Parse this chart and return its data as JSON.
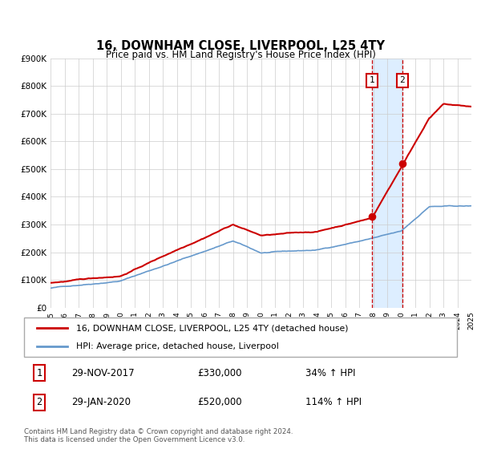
{
  "title": "16, DOWNHAM CLOSE, LIVERPOOL, L25 4TY",
  "subtitle": "Price paid vs. HM Land Registry's House Price Index (HPI)",
  "legend_line1": "16, DOWNHAM CLOSE, LIVERPOOL, L25 4TY (detached house)",
  "legend_line2": "HPI: Average price, detached house, Liverpool",
  "sale1_date": "29-NOV-2017",
  "sale1_price": 330000,
  "sale1_pct": "34%",
  "sale2_date": "29-JAN-2020",
  "sale2_price": 520000,
  "sale2_pct": "114%",
  "footer1": "Contains HM Land Registry data © Crown copyright and database right 2024.",
  "footer2": "This data is licensed under the Open Government Licence v3.0.",
  "red_color": "#cc0000",
  "blue_color": "#6699cc",
  "sale1_year": 2017.91,
  "sale2_year": 2020.08,
  "shaded_color": "#ddeeff",
  "ylim_max": 900000,
  "ylim_min": 0
}
